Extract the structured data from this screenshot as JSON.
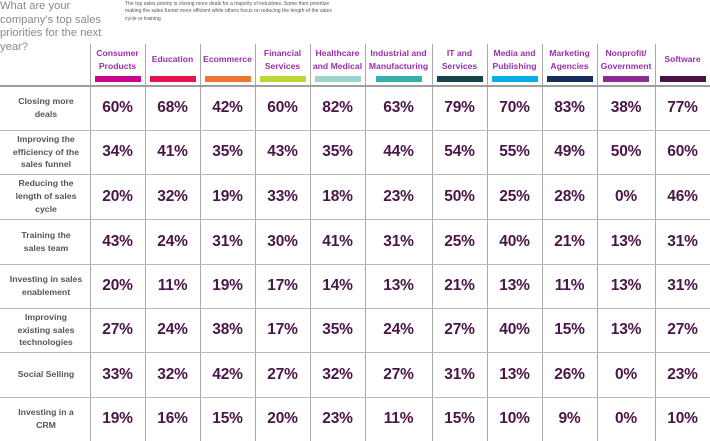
{
  "question": "What are your company's top sales priorities for the next year?",
  "intro": "The top sales priority is closing more deals for a majority of industries. Some then prioritize making the sales funnel more efficient while others focus on reducing the length of the sales cycle or training.",
  "chart_data": {
    "type": "table",
    "title": "What are your company's top sales priorities for the next year?",
    "columns": [
      {
        "label": "Consumer\nProducts",
        "color": "#c8068c"
      },
      {
        "label": "Education",
        "color": "#e8124f"
      },
      {
        "label": "Ecommerce",
        "color": "#ee7530"
      },
      {
        "label": "Financial\nServices",
        "color": "#bcd634"
      },
      {
        "label": "Healthcare\nand Medical",
        "color": "#9ad4cd"
      },
      {
        "label": "Industrial and\nManufacturing",
        "color": "#34b1ae"
      },
      {
        "label": "IT and\nServices",
        "color": "#17444a"
      },
      {
        "label": "Media and\nPublishing",
        "color": "#08aee9"
      },
      {
        "label": "Marketing\nAgencies",
        "color": "#152e5e"
      },
      {
        "label": "Nonprofit/\nGovernment",
        "color": "#8d2a92"
      },
      {
        "label": "Software",
        "color": "#4a1248"
      }
    ],
    "rows": [
      {
        "label": "Closing more\ndeals",
        "values": [
          "60%",
          "68%",
          "42%",
          "60%",
          "82%",
          "63%",
          "79%",
          "70%",
          "83%",
          "38%",
          "77%"
        ]
      },
      {
        "label": "Improving the\nefficiency of the\nsales funnel",
        "values": [
          "34%",
          "41%",
          "35%",
          "43%",
          "35%",
          "44%",
          "54%",
          "55%",
          "49%",
          "50%",
          "60%"
        ]
      },
      {
        "label": "Reducing the\nlength of sales\ncycle",
        "values": [
          "20%",
          "32%",
          "19%",
          "33%",
          "18%",
          "23%",
          "50%",
          "25%",
          "28%",
          "0%",
          "46%"
        ]
      },
      {
        "label": "Training the\nsales team",
        "values": [
          "43%",
          "24%",
          "31%",
          "30%",
          "41%",
          "31%",
          "25%",
          "40%",
          "21%",
          "13%",
          "31%"
        ]
      },
      {
        "label": "Investing in sales\nenablement",
        "values": [
          "20%",
          "11%",
          "19%",
          "17%",
          "14%",
          "13%",
          "21%",
          "13%",
          "11%",
          "13%",
          "31%"
        ]
      },
      {
        "label": "Improving\nexisting sales\ntechnologies",
        "values": [
          "27%",
          "24%",
          "38%",
          "17%",
          "35%",
          "24%",
          "27%",
          "40%",
          "15%",
          "13%",
          "27%"
        ]
      },
      {
        "label": "Social Selling",
        "values": [
          "33%",
          "32%",
          "42%",
          "27%",
          "32%",
          "27%",
          "31%",
          "13%",
          "26%",
          "0%",
          "23%"
        ]
      },
      {
        "label": "Investing in a\nCRM",
        "values": [
          "19%",
          "16%",
          "15%",
          "20%",
          "23%",
          "11%",
          "15%",
          "10%",
          "9%",
          "0%",
          "10%"
        ]
      }
    ]
  }
}
